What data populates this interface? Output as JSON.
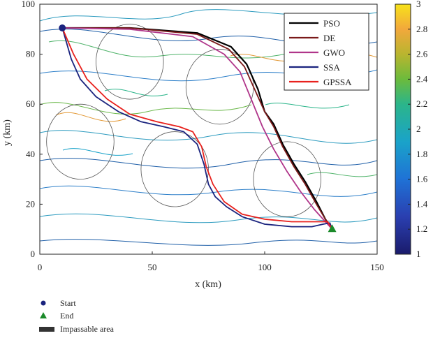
{
  "chart_data": {
    "type": "line",
    "title": "",
    "xlabel": "x (km)",
    "ylabel": "y (km)",
    "xlim": [
      0,
      150
    ],
    "ylim": [
      0,
      100
    ],
    "x_ticks": [
      0,
      50,
      100,
      150
    ],
    "y_ticks": [
      0,
      20,
      40,
      60,
      80,
      100
    ],
    "grid": false,
    "legend_position": "top-right",
    "background": "terrain contour map",
    "series": [
      {
        "name": "PSO",
        "color": "#000000",
        "points": [
          [
            10,
            90.5
          ],
          [
            40,
            90.5
          ],
          [
            70,
            88.5
          ],
          [
            85,
            83
          ],
          [
            92,
            76
          ],
          [
            97,
            66
          ],
          [
            100,
            57
          ],
          [
            104,
            52
          ],
          [
            108,
            44
          ],
          [
            113,
            36
          ],
          [
            118,
            29
          ],
          [
            123,
            21
          ],
          [
            127,
            14
          ],
          [
            130,
            10
          ]
        ]
      },
      {
        "name": "DE",
        "color": "#7a1a1a",
        "points": [
          [
            10,
            90.5
          ],
          [
            40,
            90.5
          ],
          [
            70,
            88
          ],
          [
            84,
            82
          ],
          [
            91,
            75
          ],
          [
            96,
            65
          ],
          [
            100,
            57
          ],
          [
            104,
            51
          ],
          [
            108,
            43
          ],
          [
            113,
            35
          ],
          [
            118,
            28
          ],
          [
            123,
            20
          ],
          [
            127,
            14
          ],
          [
            130,
            10
          ]
        ]
      },
      {
        "name": "GWO",
        "color": "#b0358a",
        "points": [
          [
            10,
            90.5
          ],
          [
            40,
            90
          ],
          [
            68,
            87
          ],
          [
            82,
            80
          ],
          [
            89,
            73
          ],
          [
            94,
            62
          ],
          [
            99,
            51
          ],
          [
            104,
            42
          ],
          [
            110,
            33
          ],
          [
            116,
            25
          ],
          [
            122,
            18
          ],
          [
            127,
            13
          ],
          [
            130,
            10
          ]
        ]
      },
      {
        "name": "SSA",
        "color": "#1a237e",
        "points": [
          [
            10,
            90.5
          ],
          [
            14,
            78
          ],
          [
            18,
            70
          ],
          [
            25,
            63
          ],
          [
            35,
            57
          ],
          [
            45,
            53
          ],
          [
            55,
            51
          ],
          [
            64,
            49
          ],
          [
            70,
            44
          ],
          [
            73,
            36
          ],
          [
            75,
            28
          ],
          [
            78,
            23
          ],
          [
            83,
            19
          ],
          [
            90,
            15
          ],
          [
            100,
            12
          ],
          [
            112,
            11
          ],
          [
            121,
            11
          ],
          [
            126,
            12
          ],
          [
            129,
            12.5
          ],
          [
            130,
            10
          ]
        ]
      },
      {
        "name": "GPSSA",
        "color": "#e8211d",
        "points": [
          [
            10,
            90.5
          ],
          [
            15,
            80
          ],
          [
            21,
            70
          ],
          [
            30,
            62
          ],
          [
            40,
            56
          ],
          [
            52,
            53
          ],
          [
            62,
            51
          ],
          [
            68,
            49
          ],
          [
            72,
            43
          ],
          [
            74,
            35
          ],
          [
            77,
            28
          ],
          [
            82,
            21
          ],
          [
            90,
            16
          ],
          [
            100,
            14
          ],
          [
            112,
            13
          ],
          [
            122,
            13
          ],
          [
            128,
            13
          ],
          [
            130,
            10
          ]
        ]
      }
    ],
    "start": {
      "x": 10,
      "y": 90.5
    },
    "end": {
      "x": 130,
      "y": 10
    },
    "threat_circles": [
      {
        "cx": 40,
        "cy": 77,
        "r": 15
      },
      {
        "cx": 80,
        "cy": 67,
        "r": 15
      },
      {
        "cx": 18,
        "cy": 45,
        "r": 15
      },
      {
        "cx": 60,
        "cy": 34,
        "r": 15
      },
      {
        "cx": 110,
        "cy": 30,
        "r": 15
      }
    ],
    "colorbar": {
      "min": 1,
      "max": 3,
      "ticks": [
        1,
        1.2,
        1.4,
        1.6,
        1.8,
        2,
        2.2,
        2.4,
        2.6,
        2.8,
        3
      ]
    }
  },
  "bottom_legend": {
    "start_label": "Start",
    "end_label": "End",
    "impassable_label": "Impassable area"
  },
  "colors": {
    "start_marker": "#1a237e",
    "end_marker": "#1b8a2a",
    "impassable": "#333333"
  }
}
